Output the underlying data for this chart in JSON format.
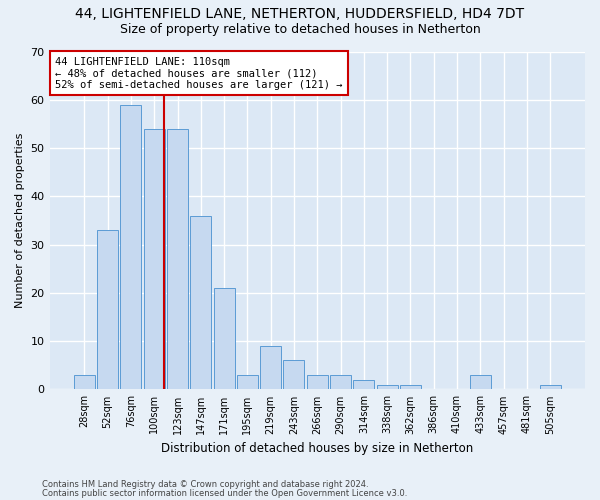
{
  "title1": "44, LIGHTENFIELD LANE, NETHERTON, HUDDERSFIELD, HD4 7DT",
  "title2": "Size of property relative to detached houses in Netherton",
  "xlabel": "Distribution of detached houses by size in Netherton",
  "ylabel": "Number of detached properties",
  "categories": [
    "28sqm",
    "52sqm",
    "76sqm",
    "100sqm",
    "123sqm",
    "147sqm",
    "171sqm",
    "195sqm",
    "219sqm",
    "243sqm",
    "266sqm",
    "290sqm",
    "314sqm",
    "338sqm",
    "362sqm",
    "386sqm",
    "410sqm",
    "433sqm",
    "457sqm",
    "481sqm",
    "505sqm"
  ],
  "values": [
    3,
    33,
    59,
    54,
    54,
    36,
    21,
    3,
    9,
    6,
    3,
    3,
    2,
    1,
    1,
    0,
    0,
    3,
    0,
    0,
    1
  ],
  "bar_color": "#c6d9f0",
  "bar_edge_color": "#5b9bd5",
  "annotation_text": "44 LIGHTENFIELD LANE: 110sqm\n← 48% of detached houses are smaller (112)\n52% of semi-detached houses are larger (121) →",
  "ylim": [
    0,
    70
  ],
  "yticks": [
    0,
    10,
    20,
    30,
    40,
    50,
    60,
    70
  ],
  "footer1": "Contains HM Land Registry data © Crown copyright and database right 2024.",
  "footer2": "Contains public sector information licensed under the Open Government Licence v3.0.",
  "bg_color": "#dce8f5",
  "grid_color": "#ffffff",
  "title1_fontsize": 10,
  "title2_fontsize": 9,
  "annotation_box_color": "#ffffff",
  "annotation_box_edge": "#cc0000",
  "vline_color": "#cc0000",
  "fig_bg_color": "#e8f0f8"
}
